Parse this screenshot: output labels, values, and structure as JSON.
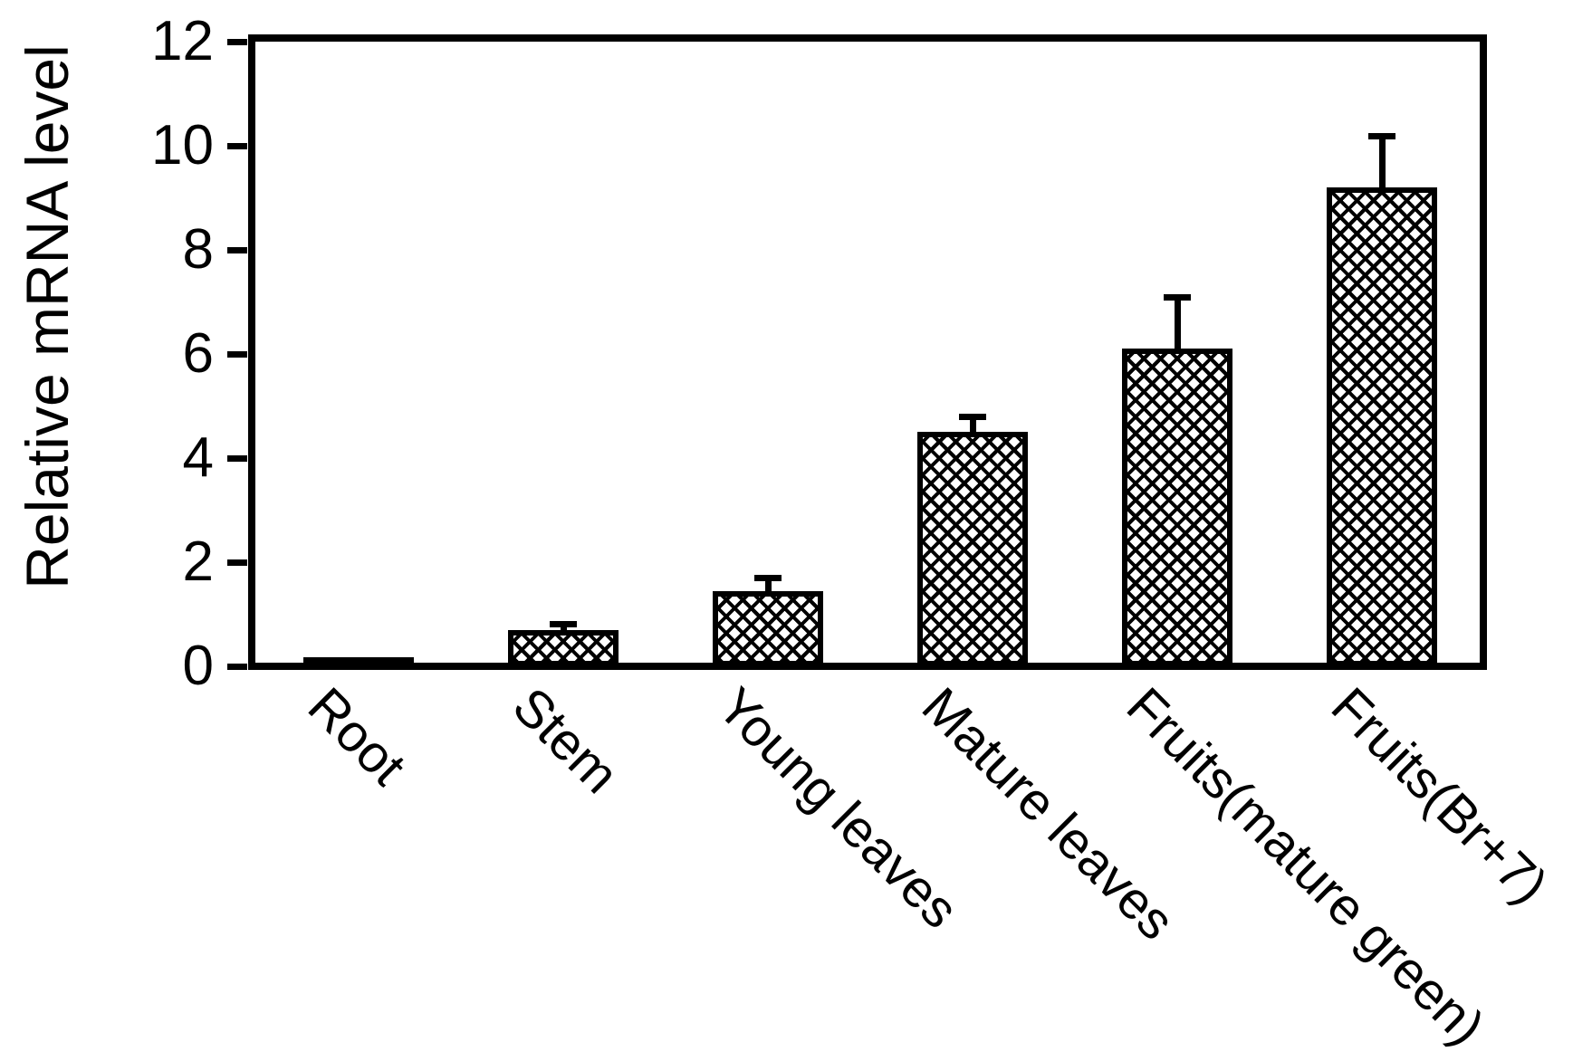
{
  "chart_data": {
    "type": "bar",
    "title": "",
    "ylabel": "Relative mRNA level",
    "xlabel": "",
    "categories": [
      "Root",
      "Stem",
      "Young leaves",
      "Mature leaves",
      "Fruits(mature green)",
      "Fruits(Br+7)"
    ],
    "values": [
      0.1,
      0.7,
      1.45,
      4.5,
      6.1,
      9.2
    ],
    "errors": [
      0,
      0.12,
      0.25,
      0.3,
      1.0,
      1.0
    ],
    "yticks": [
      0,
      2,
      4,
      6,
      8,
      10,
      12
    ],
    "ylim": [
      0,
      12
    ],
    "grid": false,
    "legend_visible": false,
    "x_label_rotation_deg": 45,
    "bar_fill_pattern": "diagonal-crosshatch",
    "bar_border_color": "#000000",
    "background_color": "#ffffff"
  }
}
